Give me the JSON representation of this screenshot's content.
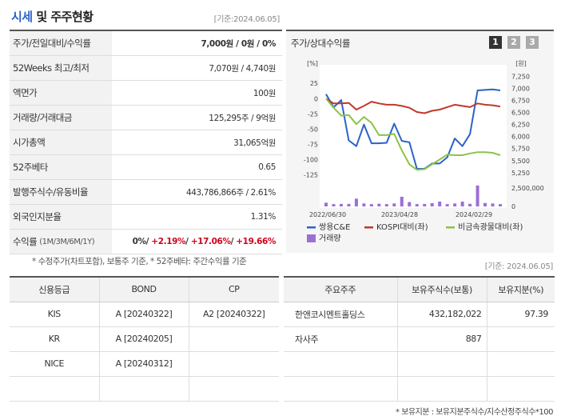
{
  "header": {
    "title_main": "시세",
    "title_rest": "및 주주현황",
    "as_of": "[기준:2024.06.05]"
  },
  "summary": [
    {
      "label": "주가/전일대비/수익률",
      "value": "7,000원 / 0원 / 0%"
    },
    {
      "label": "52Weeks 최고/최저",
      "value": "7,070원 / 4,740원"
    },
    {
      "label": "액면가",
      "value": "100원"
    },
    {
      "label": "거래량/거래대금",
      "value": "125,295주 / 9억원"
    },
    {
      "label": "시가총액",
      "value": "31,065억원"
    },
    {
      "label": "52주베타",
      "value": "0.65"
    },
    {
      "label": "발행주식수/유동비율",
      "value": "443,786,866주 / 2.61%"
    },
    {
      "label": "외국인지분율",
      "value": "1.31%"
    },
    {
      "label": "수익률",
      "label_sub": "(1M/3M/6M/1Y)",
      "v1": "0%",
      "v2": "+2.19%",
      "v3": "+17.06%",
      "v4": "+19.66%"
    }
  ],
  "summary_footnote": "* 수정주가(차트포함), 보통주 기준, * 52주베타: 주간수익률 기준",
  "chart": {
    "title": "주가/상대수익률",
    "pages": [
      "1",
      "2",
      "3"
    ],
    "left_unit": "[%]",
    "right_unit": "[원]"
  },
  "chart_data": {
    "type": "line",
    "x_ticks": [
      "2022/06/30",
      "2023/04/28",
      "2024/02/29"
    ],
    "left_axis": {
      "label": "[%]",
      "ticks": [
        25,
        0,
        -25,
        -50,
        -75,
        -100,
        -125
      ],
      "range": [
        -135,
        45
      ]
    },
    "right_axis": {
      "label": "[원]",
      "ticks": [
        "7,250",
        "7,000",
        "6,750",
        "6,500",
        "6,250",
        "6,000",
        "5,750",
        "5,500",
        "5,250"
      ],
      "range": [
        5080,
        7360
      ]
    },
    "volume_axis": {
      "ticks": [
        "2,500,000",
        "0"
      ],
      "max": 3000000
    },
    "series": [
      {
        "name": "쌍용C&E",
        "color": "#2a62c9",
        "axis": "right",
        "values": [
          6880,
          6610,
          6760,
          5920,
          5800,
          6250,
          5860,
          5860,
          5870,
          6270,
          5910,
          5880,
          5330,
          5330,
          5440,
          5440,
          5570,
          5960,
          5800,
          6050,
          6960,
          6970,
          6980,
          6960
        ]
      },
      {
        "name": "KOSPI대비(좌)",
        "color": "#c0392b",
        "axis": "left",
        "values": [
          0,
          -8,
          -8,
          -7,
          -18,
          -12,
          -5,
          -8,
          -10,
          -10,
          -12,
          -15,
          -22,
          -24,
          -20,
          -18,
          -14,
          -10,
          -12,
          -14,
          -8,
          -10,
          -11,
          -13
        ]
      },
      {
        "name": "비금속광물대비(좌)",
        "color": "#8bc34a",
        "axis": "left",
        "values": [
          0,
          -15,
          -28,
          -27,
          -42,
          -30,
          -40,
          -60,
          -60,
          -58,
          -85,
          -108,
          -117,
          -116,
          -108,
          -100,
          -92,
          -93,
          -93,
          -90,
          -88,
          -88,
          -89,
          -93
        ]
      }
    ],
    "volume": {
      "name": "거래량",
      "color": "#9c6fd6",
      "values": [
        480000,
        300000,
        320000,
        320000,
        1000000,
        380000,
        300000,
        340000,
        300000,
        380000,
        1250000,
        560000,
        300000,
        320000,
        420000,
        620000,
        300000,
        380000,
        620000,
        330000,
        2700000,
        440000,
        380000,
        300000
      ]
    },
    "legend": [
      "쌍용C&E",
      "KOSPI대비(좌)",
      "비금속광물대비(좌)",
      "거래량"
    ]
  },
  "chart_footnote": "[기준: 2024.06.05]",
  "credit": {
    "headers": [
      "신용등급",
      "BOND",
      "CP"
    ],
    "rows": [
      [
        "KIS",
        "A  [20240322]",
        "A2  [20240322]"
      ],
      [
        "KR",
        "A  [20240205]",
        ""
      ],
      [
        "NICE",
        "A  [20240312]",
        ""
      ],
      [
        "",
        "",
        ""
      ]
    ]
  },
  "holders": {
    "headers": [
      "주요주주",
      "보유주식수(보통)",
      "보유지분(%)"
    ],
    "rows": [
      [
        "한앤코시멘트홀딩스",
        "432,182,022",
        "97.39"
      ],
      [
        "자사주",
        "887",
        ""
      ],
      [
        "",
        "",
        ""
      ],
      [
        "",
        "",
        ""
      ]
    ]
  },
  "holders_footnote": "* 보유지분 : 보유지분주식수/지수산정주식수*100"
}
